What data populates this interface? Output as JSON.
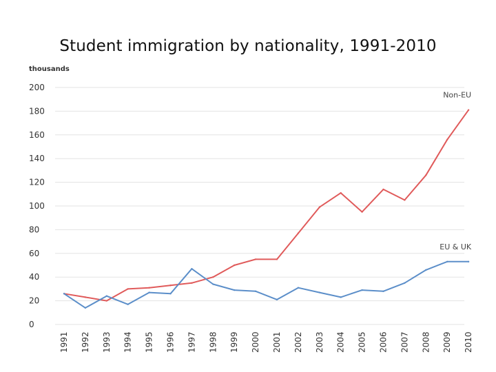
{
  "chart_data": {
    "type": "line",
    "title": "Student immigration by nationality, 1991-2010",
    "ylabel": "thousands",
    "xlabel": "",
    "x": [
      "1991",
      "1992",
      "1993",
      "1994",
      "1995",
      "1996",
      "1997",
      "1998",
      "1999",
      "2000",
      "2001",
      "2002",
      "2003",
      "2004",
      "2005",
      "2006",
      "2007",
      "2008",
      "2009",
      "2010"
    ],
    "yticks": [
      "0",
      "20",
      "40",
      "60",
      "80",
      "100",
      "120",
      "140",
      "160",
      "180",
      "200"
    ],
    "ylim": [
      0,
      200
    ],
    "grid": "horizontal",
    "series": [
      {
        "name": "Non-EU",
        "color": "#e05a5a",
        "values": [
          26,
          23,
          20,
          30,
          31,
          33,
          35,
          40,
          50,
          55,
          55,
          77,
          99,
          111,
          95,
          114,
          105,
          126,
          156,
          181
        ]
      },
      {
        "name": "EU & UK",
        "color": "#5b8ec9",
        "values": [
          26,
          14,
          24,
          17,
          27,
          26,
          47,
          34,
          29,
          28,
          21,
          31,
          27,
          23,
          29,
          28,
          35,
          46,
          53,
          53
        ]
      }
    ]
  }
}
